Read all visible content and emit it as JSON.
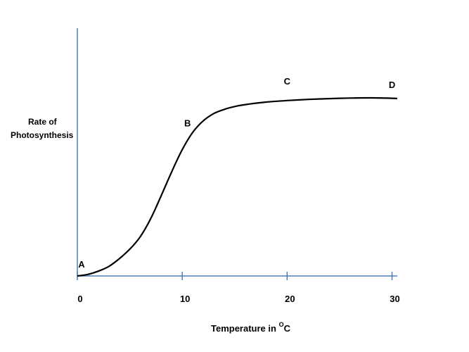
{
  "chart_data": {
    "type": "line",
    "title": "",
    "xlabel": "Temperature in ",
    "xlabel_superscript": "O",
    "xlabel_unit": "C",
    "ylabel_line1": "Rate of",
    "ylabel_line2": "Photosynthesis",
    "x_ticks": [
      "0",
      "10",
      "20",
      "30"
    ],
    "xlim": [
      0,
      30.5
    ],
    "y_ticks_shown": false,
    "grid": false,
    "series": [
      {
        "color": "#000000",
        "x": [
          0,
          1,
          2,
          3,
          4,
          5,
          6,
          7,
          8,
          9,
          10,
          11,
          12,
          13,
          14,
          15,
          16,
          18,
          20,
          22,
          24,
          26,
          28,
          30,
          30.5
        ],
        "y": [
          0.0,
          0.8,
          2.5,
          5.0,
          9.0,
          14.0,
          20.5,
          30.0,
          42.0,
          54.5,
          66.0,
          75.0,
          81.0,
          84.8,
          87.0,
          88.5,
          89.5,
          90.8,
          91.6,
          92.2,
          92.6,
          92.9,
          93.0,
          92.8,
          92.7
        ]
      }
    ],
    "point_labels": [
      {
        "text": "A",
        "x": 0,
        "y": 0
      },
      {
        "text": "B",
        "x": 10.5,
        "y": 70
      },
      {
        "text": "C",
        "x": 20,
        "y": 92
      },
      {
        "text": "D",
        "x": 30,
        "y": 93
      }
    ],
    "axis_color": "#4a7ebb",
    "line_color": "#000000"
  }
}
